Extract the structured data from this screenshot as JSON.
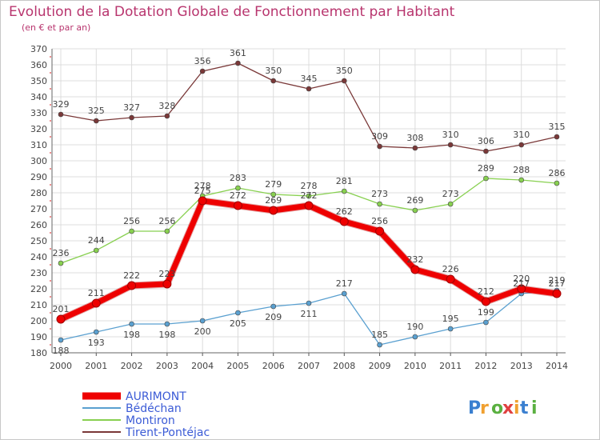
{
  "header": {
    "title": "Evolution de la Dotation Globale de Fonctionnement par Habitant",
    "subtitle": "(en € et par an)"
  },
  "logo": {
    "text": "Proxiti"
  },
  "chart_data": {
    "type": "line",
    "title": "Evolution de la Dotation Globale de Fonctionnement par Habitant",
    "subtitle": "(en € et par an)",
    "xlabel": "",
    "ylabel": "",
    "categories": [
      "2000",
      "2001",
      "2002",
      "2003",
      "2004",
      "2005",
      "2006",
      "2007",
      "2008",
      "2009",
      "2010",
      "2011",
      "2012",
      "2013",
      "2014"
    ],
    "ylim": [
      180,
      370
    ],
    "yticks": [
      180,
      190,
      200,
      210,
      220,
      230,
      240,
      250,
      260,
      270,
      280,
      290,
      300,
      310,
      320,
      330,
      340,
      350,
      360,
      370
    ],
    "grid": true,
    "legend_position": "bottom-left",
    "series": [
      {
        "name": "AURIMONT",
        "color": "#ee0000",
        "values": [
          201,
          211,
          222,
          223,
          275,
          272,
          269,
          272,
          262,
          256,
          232,
          226,
          212,
          220,
          217
        ]
      },
      {
        "name": "Bédéchan",
        "color": "#5aa0d0",
        "values": [
          188,
          193,
          198,
          198,
          200,
          205,
          209,
          211,
          217,
          185,
          190,
          195,
          199,
          217,
          219
        ]
      },
      {
        "name": "Montiron",
        "color": "#88d050",
        "values": [
          236,
          244,
          256,
          256,
          278,
          283,
          279,
          278,
          281,
          273,
          269,
          273,
          289,
          288,
          286
        ]
      },
      {
        "name": "Tirent-Pontéjac",
        "color": "#7a3838",
        "values": [
          329,
          325,
          327,
          328,
          356,
          361,
          350,
          345,
          350,
          309,
          308,
          310,
          306,
          310,
          315
        ]
      }
    ]
  }
}
